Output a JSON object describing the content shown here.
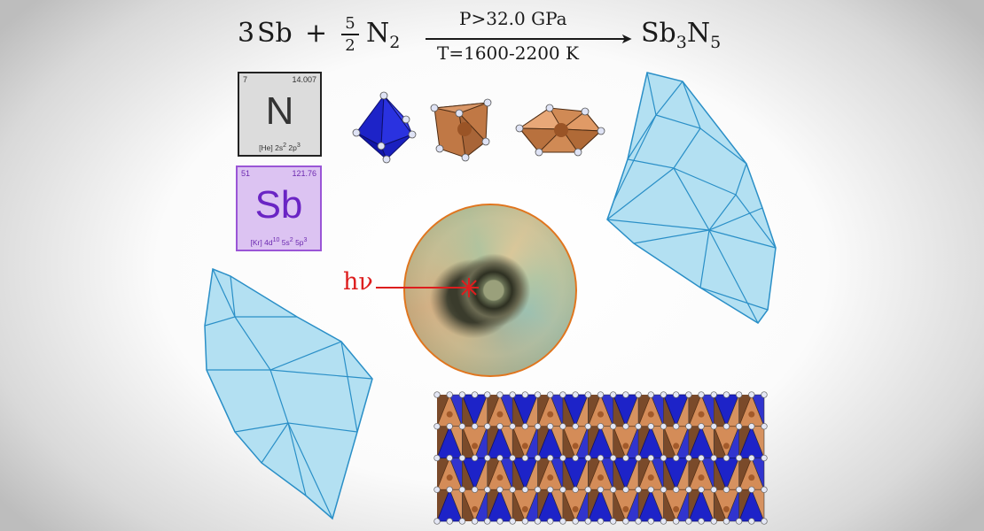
{
  "equation": {
    "coef_sb": "3",
    "reactant_sb": "Sb",
    "plus": "+",
    "frac_num": "5",
    "frac_den": "2",
    "reactant_n": "N",
    "reactant_n_sub": "2",
    "condition_pressure": "P>32.0 GPa",
    "condition_temperature": "T=1600-2200 K",
    "product_base": "Sb",
    "product_sub1": "3",
    "product_n": "N",
    "product_sub2": "5"
  },
  "elements": {
    "nitrogen": {
      "number": "7",
      "mass": "14.007",
      "symbol": "N",
      "config_core": "[He] 2s",
      "config_sup1": "2",
      "config_mid": " 2p",
      "config_sup2": "3"
    },
    "antimony": {
      "number": "51",
      "mass": "121.76",
      "symbol": "Sb",
      "config_core": "[Kr] 4d",
      "config_sup1": "10",
      "config_mid": " 5s",
      "config_sup2": "2",
      "config_end": " 5p",
      "config_sup3": "3"
    }
  },
  "laser_label": "hν",
  "colors": {
    "laser": "#dd1e1e",
    "polyhedron_blue": "#1a1fc9",
    "polyhedron_orange": "#c9814f",
    "crystal_fill": "#b3e0f2",
    "crystal_edge": "#2a8fc7",
    "photo_border": "#e0751e"
  }
}
